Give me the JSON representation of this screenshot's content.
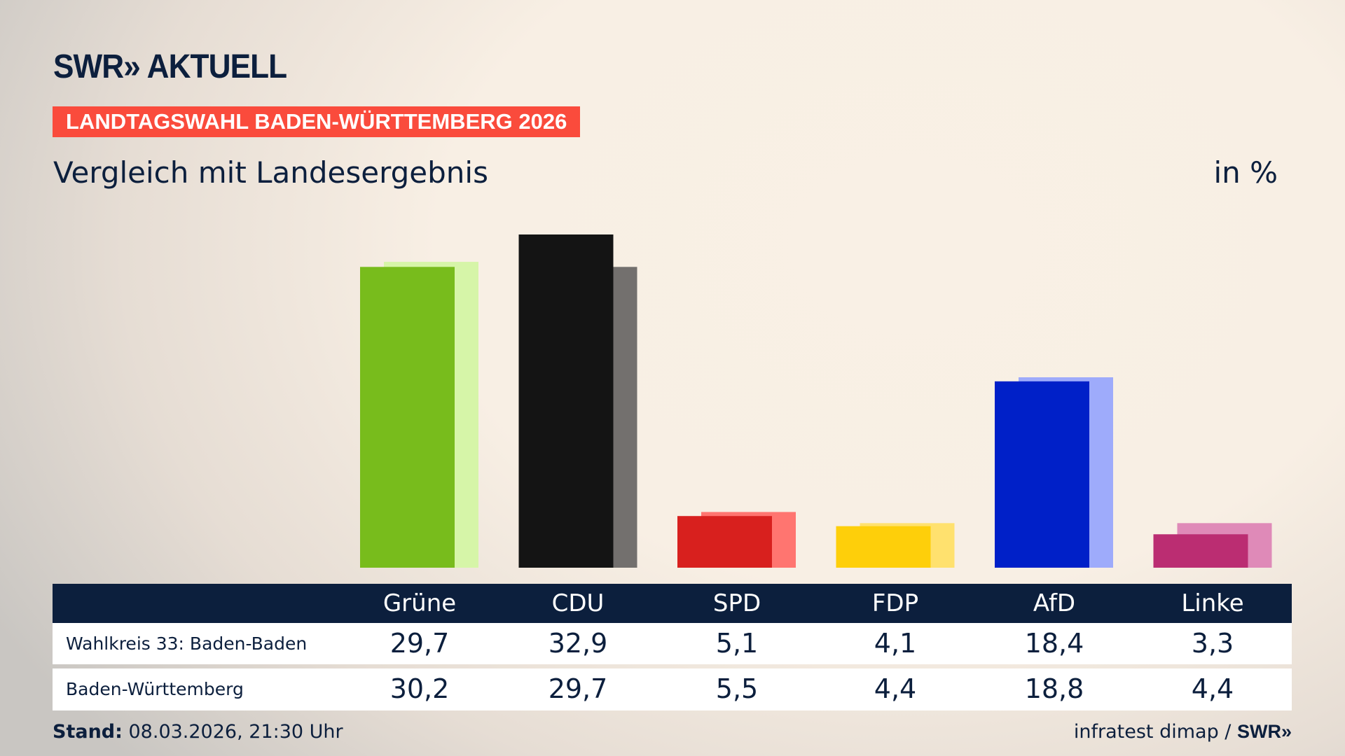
{
  "header": {
    "logo": "SWR» AKTUELL",
    "banner": "LANDTAGSWAHL BADEN-WÜRTTEMBERG 2026",
    "subtitle": "Vergleich mit Landesergebnis",
    "unit": "in %"
  },
  "chart_data": {
    "type": "bar",
    "categories": [
      "Grüne",
      "CDU",
      "SPD",
      "FDP",
      "AfD",
      "Linke"
    ],
    "series": [
      {
        "name": "Wahlkreis 33: Baden-Baden",
        "values": [
          29.7,
          32.9,
          5.1,
          4.1,
          18.4,
          3.3
        ],
        "labels": [
          "29,7",
          "32,9",
          "5,1",
          "4,1",
          "18,4",
          "3,3"
        ]
      },
      {
        "name": "Baden-Württemberg",
        "values": [
          30.2,
          29.7,
          5.5,
          4.4,
          18.8,
          4.4
        ],
        "labels": [
          "30,2",
          "29,7",
          "5,5",
          "4,4",
          "18,8",
          "4,4"
        ]
      }
    ],
    "colors": {
      "primary": [
        "#78bc1c",
        "#141414",
        "#d8201e",
        "#fecf0a",
        "#0020c8",
        "#bb2d72"
      ],
      "secondary": [
        "#d6f5a8",
        "#73706e",
        "#ff7570",
        "#ffe16e",
        "#9eabfb",
        "#df8ab8"
      ]
    },
    "ylim": [
      0,
      33
    ],
    "grid": false
  },
  "footer": {
    "stand_label": "Stand:",
    "stand_value": " 08.03.2026, 21:30 Uhr",
    "source": "infratest dimap / ",
    "source_logo": "SWR»"
  }
}
